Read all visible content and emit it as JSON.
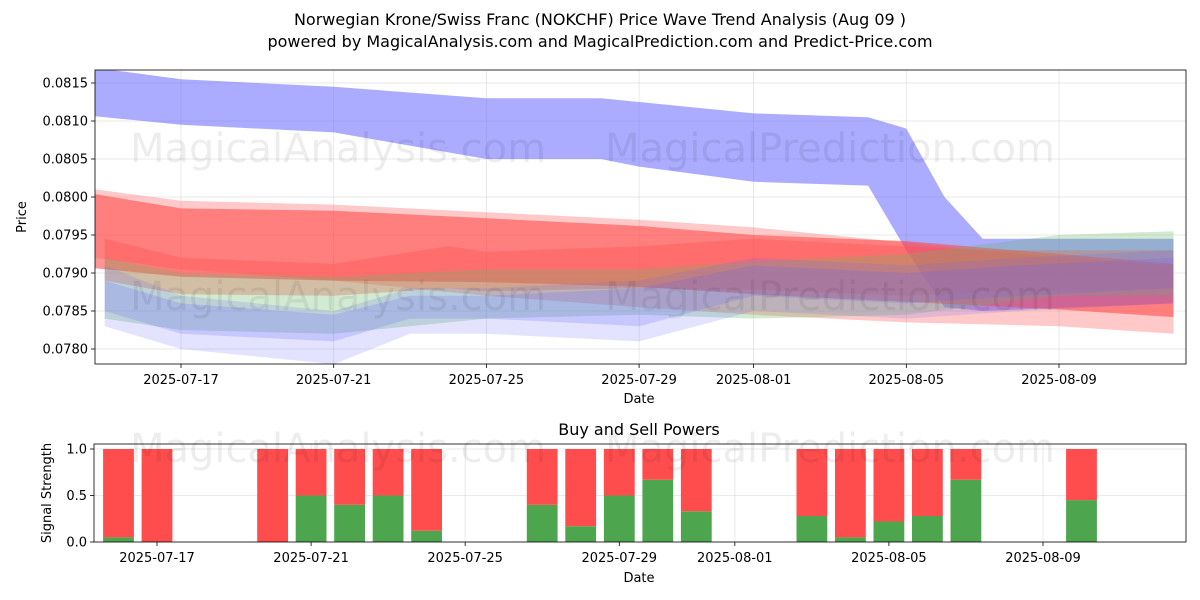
{
  "title_line1": "Norwegian Krone/Swiss Franc (NOKCHF) Price Wave Trend Analysis (Aug 09 )",
  "title_line2": "powered by MagicalAnalysis.com and MagicalPrediction.com and Predict-Price.com",
  "watermarks": [
    "MagicalAnalysis.com",
    "MagicalPrediction.com"
  ],
  "chart_data": [
    {
      "type": "area",
      "xlabel": "Date",
      "ylabel": "Price",
      "ylim": [
        0.07782,
        0.07818
      ],
      "x_ticks": [
        "2025-07-17",
        "2025-07-21",
        "2025-07-25",
        "2025-07-29",
        "2025-08-01",
        "2025-08-05",
        "2025-08-09"
      ],
      "y_ticks": [
        "0.0780",
        "0.0785",
        "0.0790",
        "0.0795",
        "0.0800",
        "0.0805",
        "0.0810",
        "0.0815"
      ],
      "grid": true,
      "colors": {
        "blue": "#6666ff",
        "red": "#ff4d4d",
        "green": "#66bb66"
      },
      "bands": [
        {
          "color": "blue",
          "opacity": 0.55,
          "x": [
            "2025-07-14",
            "2025-07-17",
            "2025-07-21",
            "2025-07-25",
            "2025-07-28",
            "2025-07-29",
            "2025-08-01",
            "2025-08-04",
            "2025-08-05",
            "2025-08-06",
            "2025-08-07",
            "2025-08-12"
          ],
          "upper": [
            0.08175,
            0.08155,
            0.08145,
            0.0813,
            0.0813,
            0.08125,
            0.0811,
            0.08105,
            0.0809,
            0.08,
            0.07945,
            0.07945
          ],
          "lower": [
            0.0811,
            0.08095,
            0.08085,
            0.0805,
            0.0805,
            0.0804,
            0.0802,
            0.08015,
            0.0793,
            0.07855,
            0.0785,
            0.0786
          ]
        },
        {
          "color": "red",
          "opacity": 0.6,
          "x": [
            "2025-07-14",
            "2025-07-17",
            "2025-07-21",
            "2025-07-25",
            "2025-07-29",
            "2025-08-01",
            "2025-08-05",
            "2025-08-09",
            "2025-08-12"
          ],
          "upper": [
            0.0801,
            0.07985,
            0.07982,
            0.07972,
            0.07962,
            0.0795,
            0.07942,
            0.07925,
            0.07912
          ],
          "lower": [
            0.0791,
            0.07895,
            0.0789,
            0.07888,
            0.07882,
            0.07872,
            0.07862,
            0.07852,
            0.07842
          ]
        },
        {
          "color": "red",
          "opacity": 0.3,
          "x": [
            "2025-07-14",
            "2025-07-17",
            "2025-07-21",
            "2025-07-25",
            "2025-07-29",
            "2025-08-01",
            "2025-08-05",
            "2025-08-09",
            "2025-08-12"
          ],
          "upper": [
            0.08015,
            0.07995,
            0.0799,
            0.0798,
            0.0797,
            0.0796,
            0.0794,
            0.0792,
            0.0791
          ],
          "lower": [
            0.07925,
            0.07905,
            0.0789,
            0.0787,
            0.07855,
            0.07845,
            0.07835,
            0.0783,
            0.0782
          ]
        },
        {
          "color": "red",
          "opacity": 0.35,
          "x": [
            "2025-07-15",
            "2025-07-17",
            "2025-07-21",
            "2025-07-24",
            "2025-07-25",
            "2025-07-29",
            "2025-08-01",
            "2025-08-05",
            "2025-08-07",
            "2025-08-12"
          ],
          "upper": [
            0.07945,
            0.0792,
            0.07912,
            0.07935,
            0.07928,
            0.07935,
            0.07945,
            0.07935,
            0.0793,
            0.0793
          ],
          "lower": [
            0.0789,
            0.07872,
            0.0787,
            0.0788,
            0.07876,
            0.0788,
            0.07878,
            0.0787,
            0.07875,
            0.0788
          ]
        },
        {
          "color": "green",
          "opacity": 0.3,
          "x": [
            "2025-07-15",
            "2025-07-17",
            "2025-07-21",
            "2025-07-25",
            "2025-07-29",
            "2025-08-01",
            "2025-08-05",
            "2025-08-09",
            "2025-08-12"
          ],
          "upper": [
            0.0792,
            0.079,
            0.07895,
            0.07905,
            0.07905,
            0.07915,
            0.07925,
            0.0795,
            0.07955
          ],
          "lower": [
            0.0784,
            0.07825,
            0.0782,
            0.0784,
            0.07845,
            0.0784,
            0.07845,
            0.0787,
            0.0787
          ]
        },
        {
          "color": "blue",
          "opacity": 0.18,
          "x": [
            "2025-07-15",
            "2025-07-17",
            "2025-07-21",
            "2025-07-23",
            "2025-07-25",
            "2025-07-29",
            "2025-08-01",
            "2025-08-05",
            "2025-08-08",
            "2025-08-12"
          ],
          "upper": [
            0.0791,
            0.0787,
            0.0785,
            0.0788,
            0.0788,
            0.0789,
            0.0792,
            0.0791,
            0.0792,
            0.0793
          ],
          "lower": [
            0.0783,
            0.078,
            0.0778,
            0.0782,
            0.0782,
            0.0781,
            0.0785,
            0.0784,
            0.0785,
            0.0786
          ]
        },
        {
          "color": "blue",
          "opacity": 0.22,
          "x": [
            "2025-07-15",
            "2025-07-17",
            "2025-07-21",
            "2025-07-23",
            "2025-07-25",
            "2025-07-29",
            "2025-08-01",
            "2025-08-05",
            "2025-08-08",
            "2025-08-12"
          ],
          "upper": [
            0.0789,
            0.0786,
            0.07845,
            0.0787,
            0.0787,
            0.0788,
            0.0791,
            0.079,
            0.0791,
            0.0792
          ],
          "lower": [
            0.0785,
            0.0782,
            0.0781,
            0.0784,
            0.0784,
            0.0783,
            0.0787,
            0.0786,
            0.0787,
            0.0788
          ]
        }
      ]
    },
    {
      "type": "bar",
      "title": "Buy and Sell Powers",
      "xlabel": "Date",
      "ylabel": "Signal Strength",
      "ylim": [
        0,
        1.05
      ],
      "y_ticks": [
        "0.0",
        "0.5",
        "1.0"
      ],
      "x_ticks": [
        "2025-07-17",
        "2025-07-21",
        "2025-07-25",
        "2025-07-29",
        "2025-08-01",
        "2025-08-05",
        "2025-08-09"
      ],
      "categories": [
        "2025-07-16",
        "2025-07-17",
        "2025-07-20",
        "2025-07-21",
        "2025-07-22",
        "2025-07-23",
        "2025-07-24",
        "2025-07-27",
        "2025-07-28",
        "2025-07-29",
        "2025-07-30",
        "2025-07-31",
        "2025-08-03",
        "2025-08-04",
        "2025-08-05",
        "2025-08-06",
        "2025-08-07",
        "2025-08-10"
      ],
      "series": [
        {
          "name": "Buy",
          "color": "#4da64d",
          "values": [
            0.05,
            0.0,
            0.0,
            0.5,
            0.4,
            0.5,
            0.12,
            0.4,
            0.17,
            0.5,
            0.67,
            0.33,
            0.28,
            0.05,
            0.22,
            0.28,
            0.67,
            0.45
          ]
        },
        {
          "name": "Sell",
          "color": "#ff4d4d",
          "values": [
            0.95,
            1.0,
            1.0,
            0.5,
            0.6,
            0.5,
            0.88,
            0.6,
            0.83,
            0.5,
            0.33,
            0.67,
            0.72,
            0.95,
            0.78,
            0.72,
            0.33,
            0.55
          ]
        }
      ]
    }
  ]
}
